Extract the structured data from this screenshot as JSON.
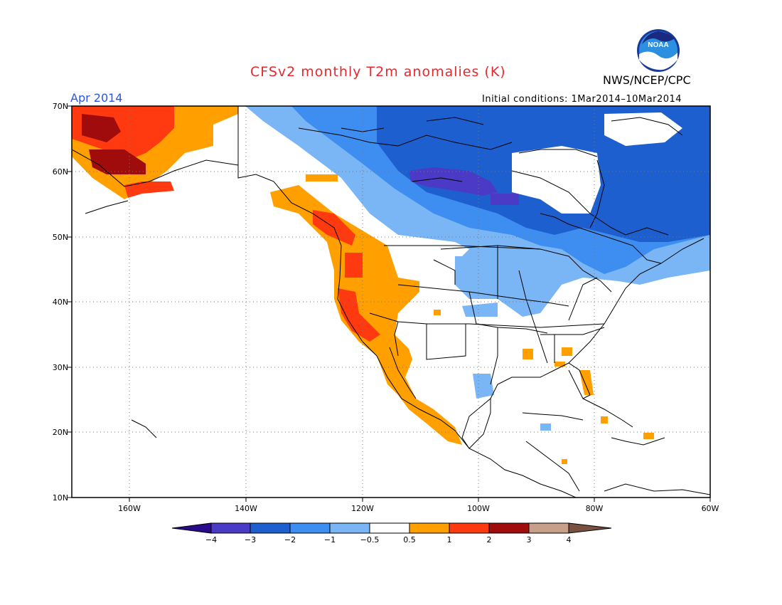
{
  "title": "CFSv2 monthly T2m anomalies (K)",
  "period": "Apr 2014",
  "initial_conditions": "Initial conditions: 1Mar2014–10Mar2014",
  "agency": "NWS/NCEP/CPC",
  "logo_text": "NOAA",
  "map": {
    "lon_range": [
      -172,
      -60
    ],
    "lat_range": [
      10,
      70
    ],
    "lat_ticks": [
      "70N",
      "60N",
      "50N",
      "40N",
      "30N",
      "20N",
      "10N"
    ],
    "lon_ticks": [
      "160W",
      "140W",
      "120W",
      "100W",
      "80W",
      "60W"
    ],
    "grid": "dotted"
  },
  "colorbar": {
    "labels": [
      "−4",
      "−3",
      "−2",
      "−1",
      "−0.5",
      "0.5",
      "1",
      "2",
      "3",
      "4"
    ],
    "colors": {
      "lt_m4": "#2a0a8c",
      "m4_m3": "#4b3ac6",
      "m3_m2": "#1e5fd0",
      "m2_m1": "#3d8ef0",
      "m1_m05": "#7ab6f5",
      "m05_05": "#ffffff",
      "p05_1": "#ffa000",
      "p1_2": "#ff3a10",
      "p2_3": "#a00b0b",
      "p3_4": "#c8a08a",
      "gt_4": "#7a5040"
    }
  }
}
